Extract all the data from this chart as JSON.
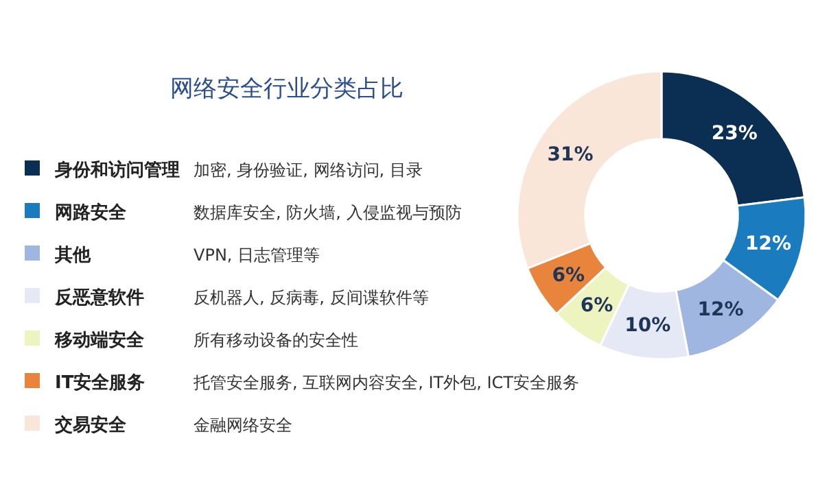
{
  "chart_data": {
    "type": "donut",
    "title": "网络安全行业分类占比",
    "categories": [
      "身份和访问管理",
      "网路安全",
      "其他",
      "反恶意软件",
      "移动端安全",
      "IT安全服务",
      "交易安全"
    ],
    "values": [
      23,
      12,
      12,
      10,
      6,
      6,
      31
    ],
    "value_labels": [
      "23%",
      "12%",
      "12%",
      "10%",
      "6%",
      "6%",
      "31%"
    ],
    "colors": [
      "#0b2f52",
      "#1b7bbf",
      "#9fb7e0",
      "#e5e9f6",
      "#eef4c0",
      "#e8843c",
      "#fae6d8"
    ],
    "legend": "left",
    "annotations": [
      "加密, 身份验证, 网络访问, 目录",
      "数据库安全, 防火墙, 入侵监视与预防",
      "VPN, 日志管理等",
      "反机器人, 反病毒, 反间谍软件等",
      "所有移动设备的安全性",
      "托管安全服务, 互联网内容安全, IT外包, ICT安全服务",
      "金融网络安全"
    ]
  }
}
